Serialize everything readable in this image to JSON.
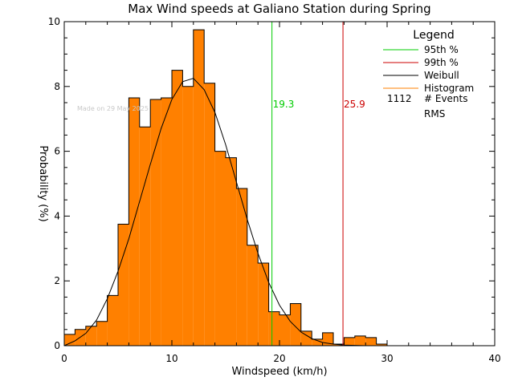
{
  "chart_data": {
    "type": "bar",
    "title": "Max Wind speeds at Galiano Station during Spring",
    "xlabel": "Windspeed (km/h)",
    "ylabel": "Probability (%)",
    "xlim": [
      0,
      40
    ],
    "ylim": [
      0,
      10
    ],
    "xticks": [
      0,
      10,
      20,
      30,
      40
    ],
    "yticks": [
      0,
      2,
      4,
      6,
      8,
      10
    ],
    "bin_width": 1,
    "bin_start": 0,
    "values": [
      0.35,
      0.5,
      0.6,
      0.75,
      1.55,
      3.75,
      7.65,
      6.75,
      7.6,
      7.65,
      8.5,
      8.0,
      9.75,
      8.1,
      6.0,
      5.8,
      4.85,
      3.1,
      2.55,
      1.05,
      0.95,
      1.3,
      0.45,
      0.2,
      0.4,
      0.05,
      0.25,
      0.3,
      0.25,
      0.05,
      0.0
    ],
    "weibull_curve": {
      "x": [
        0,
        1,
        2,
        3,
        4,
        5,
        6,
        7,
        8,
        9,
        10,
        11,
        12,
        13,
        14,
        15,
        16,
        17,
        18,
        19,
        20,
        21,
        22,
        23,
        24,
        25,
        26,
        27,
        28
      ],
      "y": [
        0,
        0.15,
        0.38,
        0.79,
        1.45,
        2.3,
        3.3,
        4.45,
        5.6,
        6.7,
        7.6,
        8.15,
        8.25,
        7.9,
        7.2,
        6.2,
        5.05,
        3.9,
        2.85,
        1.95,
        1.25,
        0.75,
        0.42,
        0.22,
        0.1,
        0.05,
        0.02,
        0.01,
        0.0
      ]
    },
    "percentile_lines": [
      {
        "name": "95th %",
        "value": 19.3,
        "label": "19.3",
        "color": "#00cc00"
      },
      {
        "name": "99th %",
        "value": 25.9,
        "label": "25.9",
        "color": "#cc0000"
      }
    ],
    "legend": {
      "title": "Legend",
      "placement": "top-right",
      "entries": [
        {
          "label": "95th %",
          "color": "#00cc00"
        },
        {
          "label": "99th %",
          "color": "#cc0000"
        },
        {
          "label": "Weibull",
          "color": "#000000"
        },
        {
          "label": "Histogram",
          "color": "#ff8000"
        }
      ],
      "events_count": "1112",
      "events_label": "# Events",
      "rms_label": "RMS"
    },
    "watermark": "Made on 29 May 2025",
    "colors": {
      "histogram_fill": "#ff8000",
      "histogram_edge": "#000000",
      "axis": "#000000"
    }
  }
}
